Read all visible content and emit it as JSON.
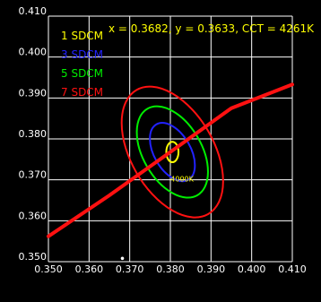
{
  "chart_data": {
    "type": "line",
    "readout": "x = 0.3682, y = 0.3633, CCT = 4261K",
    "x_ticks": [
      "0.350",
      "0.360",
      "0.370",
      "0.380",
      "0.390",
      "0.400",
      "0.410"
    ],
    "y_ticks": [
      "0.350",
      "0.360",
      "0.370",
      "0.380",
      "0.390",
      "0.400",
      "0.410"
    ],
    "xlim": [
      0.35,
      0.41
    ],
    "ylim": [
      0.35,
      0.41
    ],
    "grid": true,
    "legend_position": "top-left",
    "legend": [
      {
        "label": "1 SDCM",
        "color": "#ffff00"
      },
      {
        "label": "3 SDCM",
        "color": "#2222ff"
      },
      {
        "label": "5 SDCM",
        "color": "#00ee00"
      },
      {
        "label": "7 SDCM",
        "color": "#ff1111"
      }
    ],
    "ellipse_center": [
      0.3805,
      0.3768
    ],
    "ellipses": [
      {
        "name": "1 SDCM",
        "color": "#ffff00",
        "rx": 0.0015,
        "ry": 0.0025,
        "angle_deg": 0
      },
      {
        "name": "3 SDCM",
        "color": "#2222ff",
        "rx": 0.0045,
        "ry": 0.0078,
        "angle_deg": -30
      },
      {
        "name": "5 SDCM",
        "color": "#00ee00",
        "rx": 0.0072,
        "ry": 0.0122,
        "angle_deg": -30
      },
      {
        "name": "7 SDCM",
        "color": "#ff1111",
        "rx": 0.0102,
        "ry": 0.0175,
        "angle_deg": -30
      }
    ],
    "locus": {
      "color": "#ff1111",
      "points": [
        [
          0.35,
          0.3562
        ],
        [
          0.365,
          0.3662
        ],
        [
          0.38,
          0.3768
        ],
        [
          0.395,
          0.3875
        ],
        [
          0.41,
          0.3933
        ]
      ]
    },
    "cct_marker": {
      "label": "4000K",
      "x": 0.3805,
      "y": 0.3768,
      "color": "#ffff00"
    },
    "sample_point": {
      "x": 0.3682,
      "y": 0.3633,
      "color": "#ffffff"
    },
    "colors": {
      "background": "#000000",
      "grid": "#ffffff",
      "text": "#ffffff"
    }
  }
}
